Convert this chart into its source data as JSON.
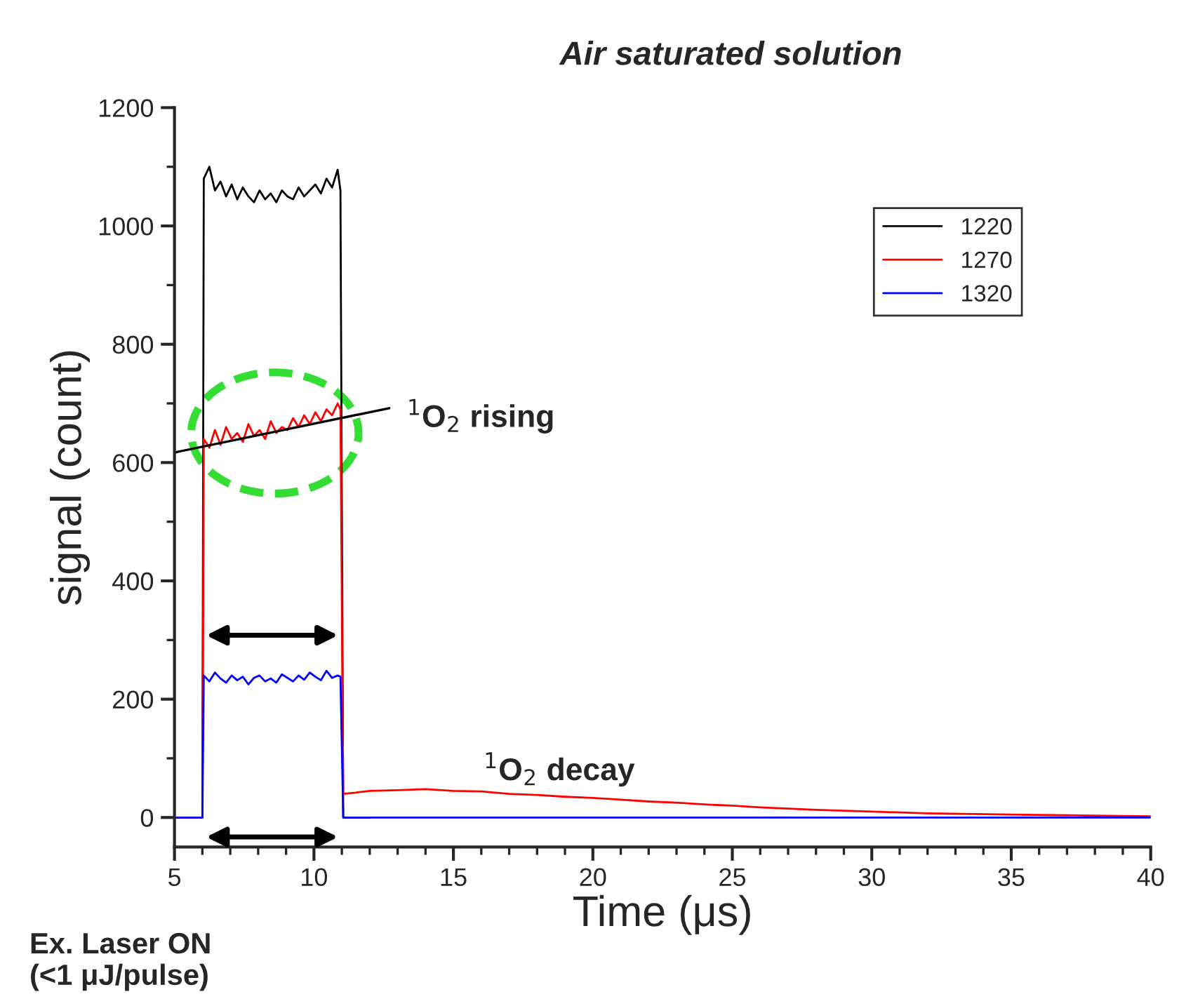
{
  "chart_data": {
    "type": "line",
    "title": "Air saturated solution",
    "xlabel": "Time (μs)",
    "ylabel": "signal (count)",
    "xlim": [
      5,
      40
    ],
    "xticks": [
      5,
      10,
      15,
      20,
      25,
      30,
      35,
      40
    ],
    "ylim": [
      -50,
      1200
    ],
    "yticks": [
      0,
      200,
      400,
      600,
      800,
      1000,
      1200
    ],
    "grid": false,
    "legend": "top right",
    "marker": "none",
    "line_style": "solid",
    "series": [
      {
        "name": "1220",
        "color": "#000000",
        "x": [
          5,
          5.5,
          6,
          6.05,
          6.25,
          6.45,
          6.65,
          6.85,
          7.05,
          7.25,
          7.45,
          7.65,
          7.85,
          8.05,
          8.25,
          8.45,
          8.65,
          8.85,
          9.05,
          9.25,
          9.45,
          9.65,
          9.85,
          10.05,
          10.25,
          10.45,
          10.65,
          10.85,
          10.95,
          11.05,
          12
        ],
        "values": [
          0,
          0,
          0,
          1080,
          1100,
          1060,
          1075,
          1050,
          1070,
          1045,
          1065,
          1050,
          1040,
          1060,
          1045,
          1055,
          1040,
          1060,
          1050,
          1045,
          1065,
          1050,
          1060,
          1070,
          1055,
          1080,
          1065,
          1095,
          1060,
          0,
          0
        ]
      },
      {
        "name": "1270",
        "color": "#ff0000",
        "x": [
          5,
          5.5,
          6,
          6.05,
          6.25,
          6.45,
          6.65,
          6.85,
          7.05,
          7.25,
          7.45,
          7.65,
          7.85,
          8.05,
          8.25,
          8.45,
          8.65,
          8.85,
          9.05,
          9.25,
          9.45,
          9.65,
          9.85,
          10.05,
          10.25,
          10.45,
          10.65,
          10.85,
          10.95,
          11.05,
          11.5,
          12,
          13,
          14,
          15,
          16,
          17,
          18,
          19,
          20,
          21,
          22,
          23,
          24,
          25,
          26,
          27,
          28,
          30,
          32,
          35,
          38,
          40
        ],
        "values": [
          0,
          0,
          0,
          640,
          625,
          655,
          630,
          660,
          640,
          650,
          635,
          665,
          645,
          655,
          640,
          670,
          650,
          660,
          655,
          675,
          660,
          680,
          665,
          685,
          670,
          690,
          680,
          700,
          690,
          40,
          42,
          45,
          46,
          48,
          45,
          44,
          40,
          38,
          35,
          33,
          30,
          27,
          25,
          22,
          20,
          17,
          15,
          13,
          10,
          7,
          5,
          3,
          2
        ]
      },
      {
        "name": "1320",
        "color": "#0000ff",
        "x": [
          5,
          5.5,
          6,
          6.05,
          6.25,
          6.45,
          6.65,
          6.85,
          7.05,
          7.25,
          7.45,
          7.65,
          7.85,
          8.05,
          8.25,
          8.45,
          8.65,
          8.85,
          9.05,
          9.25,
          9.45,
          9.65,
          9.85,
          10.05,
          10.25,
          10.45,
          10.65,
          10.85,
          10.95,
          11.05,
          12,
          15,
          20,
          25,
          30,
          35,
          40
        ],
        "values": [
          0,
          0,
          0,
          240,
          230,
          245,
          235,
          228,
          240,
          232,
          238,
          225,
          236,
          240,
          230,
          235,
          228,
          242,
          236,
          230,
          240,
          233,
          245,
          238,
          232,
          248,
          236,
          240,
          238,
          0,
          0,
          0,
          0,
          0,
          0,
          0,
          0
        ]
      },
      {
        "type": "line",
        "color": "#000000",
        "x": [
          5,
          12.7
        ],
        "values": [
          617,
          692
        ]
      }
    ],
    "annotations": [
      "$^{1}$O$_{2}$ rising",
      "$^{1}$O$_{2}$ decay",
      "Ex. Laser ON\n(<1 μJ/pulse)"
    ]
  }
}
